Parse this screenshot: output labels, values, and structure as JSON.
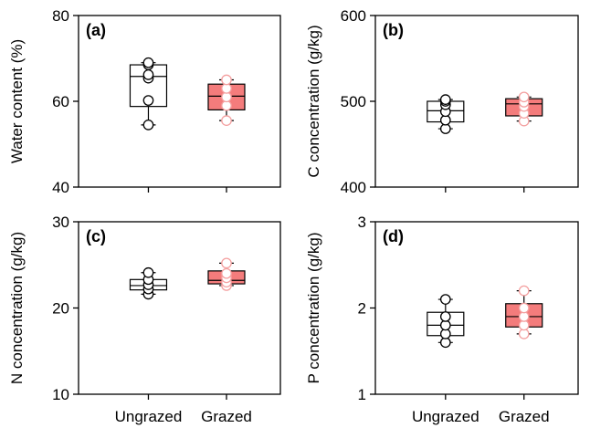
{
  "chart_data": [
    {
      "type": "box",
      "panel_label": "(a)",
      "ylabel": "Water content (%)",
      "ylim": [
        40,
        80
      ],
      "yticks": [
        "40",
        "60",
        "80"
      ],
      "categories": [
        "Ungrazed",
        "Grazed"
      ],
      "boxes": [
        {
          "name": "Ungrazed",
          "fill": "#ffffff",
          "point_fill": "#ffffff",
          "point_stroke": "#000000",
          "whisker_low": 54.5,
          "q1": 58.8,
          "median": 65.8,
          "q3": 68.5,
          "whisker_high": 69,
          "points": [
            54.5,
            60.2,
            65.4,
            66.2,
            68.5,
            69.0
          ]
        },
        {
          "name": "Grazed",
          "fill": "#f47c7c",
          "point_fill": "#ffffff",
          "point_stroke": "#f4a0a0",
          "whisker_low": 55.5,
          "q1": 58.0,
          "median": 61.2,
          "q3": 64.0,
          "whisker_high": 65,
          "points": [
            55.5,
            59.0,
            61.0,
            63.0,
            65.0
          ]
        }
      ]
    },
    {
      "type": "box",
      "panel_label": "(b)",
      "ylabel": "C concentration (g/kg)",
      "ylim": [
        400,
        600
      ],
      "yticks": [
        "400",
        "500",
        "600"
      ],
      "categories": [
        "Ungrazed",
        "Grazed"
      ],
      "boxes": [
        {
          "name": "Ungrazed",
          "fill": "#ffffff",
          "point_fill": "#ffffff",
          "point_stroke": "#000000",
          "whisker_low": 468,
          "q1": 476,
          "median": 489,
          "q3": 500,
          "whisker_high": 502,
          "points": [
            468,
            478,
            488,
            496,
            500,
            502
          ]
        },
        {
          "name": "Grazed",
          "fill": "#f47c7c",
          "point_fill": "#ffffff",
          "point_stroke": "#f4a0a0",
          "whisker_low": 477,
          "q1": 483,
          "median": 497,
          "q3": 503,
          "whisker_high": 505,
          "points": [
            477,
            486,
            494,
            499,
            505
          ]
        }
      ]
    },
    {
      "type": "box",
      "panel_label": "(c)",
      "ylabel": "N concentration (g/kg)",
      "ylim": [
        10,
        30
      ],
      "yticks": [
        "10",
        "20",
        "30"
      ],
      "categories": [
        "Ungrazed",
        "Grazed"
      ],
      "boxes": [
        {
          "name": "Ungrazed",
          "fill": "#ffffff",
          "point_fill": "#ffffff",
          "point_stroke": "#000000",
          "whisker_low": 21.6,
          "q1": 22.1,
          "median": 22.6,
          "q3": 23.3,
          "whisker_high": 24.1,
          "points": [
            21.6,
            22.2,
            22.7,
            23.3,
            24.1
          ]
        },
        {
          "name": "Grazed",
          "fill": "#f47c7c",
          "point_fill": "#ffffff",
          "point_stroke": "#f4a0a0",
          "whisker_low": 22.6,
          "q1": 22.8,
          "median": 23.2,
          "q3": 24.3,
          "whisker_high": 25.2,
          "points": [
            22.6,
            23.0,
            23.5,
            24.0,
            25.2
          ]
        }
      ]
    },
    {
      "type": "box",
      "panel_label": "(d)",
      "ylabel": "P concentration (g/kg)",
      "ylim": [
        1,
        3
      ],
      "yticks": [
        "1",
        "2",
        "3"
      ],
      "categories": [
        "Ungrazed",
        "Grazed"
      ],
      "boxes": [
        {
          "name": "Ungrazed",
          "fill": "#ffffff",
          "point_fill": "#ffffff",
          "point_stroke": "#000000",
          "whisker_low": 1.6,
          "q1": 1.68,
          "median": 1.8,
          "q3": 1.95,
          "whisker_high": 2.1,
          "points": [
            1.6,
            1.7,
            1.8,
            1.9,
            2.1
          ]
        },
        {
          "name": "Grazed",
          "fill": "#f47c7c",
          "point_fill": "#ffffff",
          "point_stroke": "#f4a0a0",
          "whisker_low": 1.7,
          "q1": 1.78,
          "median": 1.9,
          "q3": 2.05,
          "whisker_high": 2.2,
          "points": [
            1.7,
            1.8,
            1.9,
            2.0,
            2.2
          ]
        }
      ]
    }
  ]
}
